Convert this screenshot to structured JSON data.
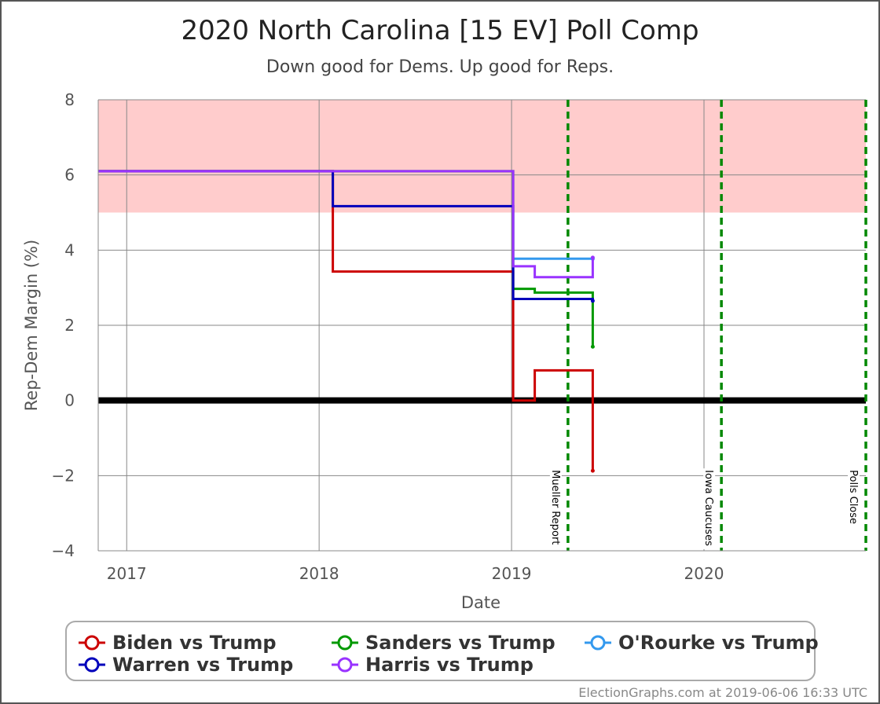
{
  "chart_data": {
    "type": "line",
    "title": "2020 North Carolina [15 EV] Poll Comp",
    "subtitle": "Down good for Dems. Up good for Reps.",
    "xlabel": "Date",
    "ylabel": "Rep-Dem Margin (%)",
    "xlim": [
      "2016-11-08",
      "2020-11-03"
    ],
    "ylim": [
      -4,
      8
    ],
    "x_ticks": [
      {
        "date": "2017-01-01",
        "label": "2017"
      },
      {
        "date": "2018-01-01",
        "label": "2018"
      },
      {
        "date": "2019-01-01",
        "label": "2019"
      },
      {
        "date": "2020-01-01",
        "label": "2020"
      }
    ],
    "y_ticks": [
      {
        "value": 8,
        "label": "8"
      },
      {
        "value": 6,
        "label": "6"
      },
      {
        "value": 4,
        "label": "4"
      },
      {
        "value": 2,
        "label": "2"
      },
      {
        "value": 0,
        "label": "0"
      },
      {
        "value": -2,
        "label": "−2"
      },
      {
        "value": -4,
        "label": "−4"
      }
    ],
    "grid": true,
    "shaded_band": {
      "from": 5,
      "to": 8,
      "color": "#ffcccc"
    },
    "zero_line_color": "#000000",
    "event_lines": [
      {
        "date": "2019-04-18",
        "label": "Mueller Report",
        "color": "#008800"
      },
      {
        "date": "2020-02-03",
        "label": "Iowa Caucuses",
        "color": "#008800"
      },
      {
        "date": "2020-11-03",
        "label": "Polls Close",
        "color": "#008800"
      }
    ],
    "series": [
      {
        "name": "Biden vs Trump",
        "color": "#cc0000",
        "step": true,
        "points": [
          [
            "2016-11-08",
            6.1
          ],
          [
            "2018-01-27",
            3.43
          ],
          [
            "2019-01-04",
            0.0
          ],
          [
            "2019-02-14",
            0.8
          ],
          [
            "2019-06-04",
            -1.87
          ]
        ]
      },
      {
        "name": "Warren vs Trump",
        "color": "#0000bb",
        "step": true,
        "points": [
          [
            "2016-11-08",
            6.1
          ],
          [
            "2018-01-27",
            5.17
          ],
          [
            "2019-01-04",
            2.7
          ],
          [
            "2019-06-04",
            2.65
          ]
        ]
      },
      {
        "name": "Sanders vs Trump",
        "color": "#009900",
        "step": true,
        "points": [
          [
            "2016-11-08",
            6.1
          ],
          [
            "2019-01-04",
            2.97
          ],
          [
            "2019-02-14",
            2.87
          ],
          [
            "2019-06-04",
            1.43
          ]
        ]
      },
      {
        "name": "Harris vs Trump",
        "color": "#9933ff",
        "step": true,
        "points": [
          [
            "2016-11-08",
            6.1
          ],
          [
            "2019-01-04",
            3.57
          ],
          [
            "2019-02-14",
            3.28
          ],
          [
            "2019-06-04",
            3.8
          ]
        ]
      },
      {
        "name": "O'Rourke vs Trump",
        "color": "#3399ee",
        "step": true,
        "points": [
          [
            "2019-01-04",
            3.77
          ],
          [
            "2019-06-04",
            3.77
          ]
        ]
      }
    ],
    "legend": {
      "placement": "bottom",
      "entries": [
        {
          "label": "Biden vs Trump",
          "color": "#cc0000"
        },
        {
          "label": "Sanders vs Trump",
          "color": "#009900"
        },
        {
          "label": "O'Rourke vs Trump",
          "color": "#3399ee"
        },
        {
          "label": "Warren vs Trump",
          "color": "#0000bb"
        },
        {
          "label": "Harris vs Trump",
          "color": "#9933ff"
        }
      ]
    }
  },
  "footer": "ElectionGraphs.com at 2019-06-06 16:33 UTC"
}
